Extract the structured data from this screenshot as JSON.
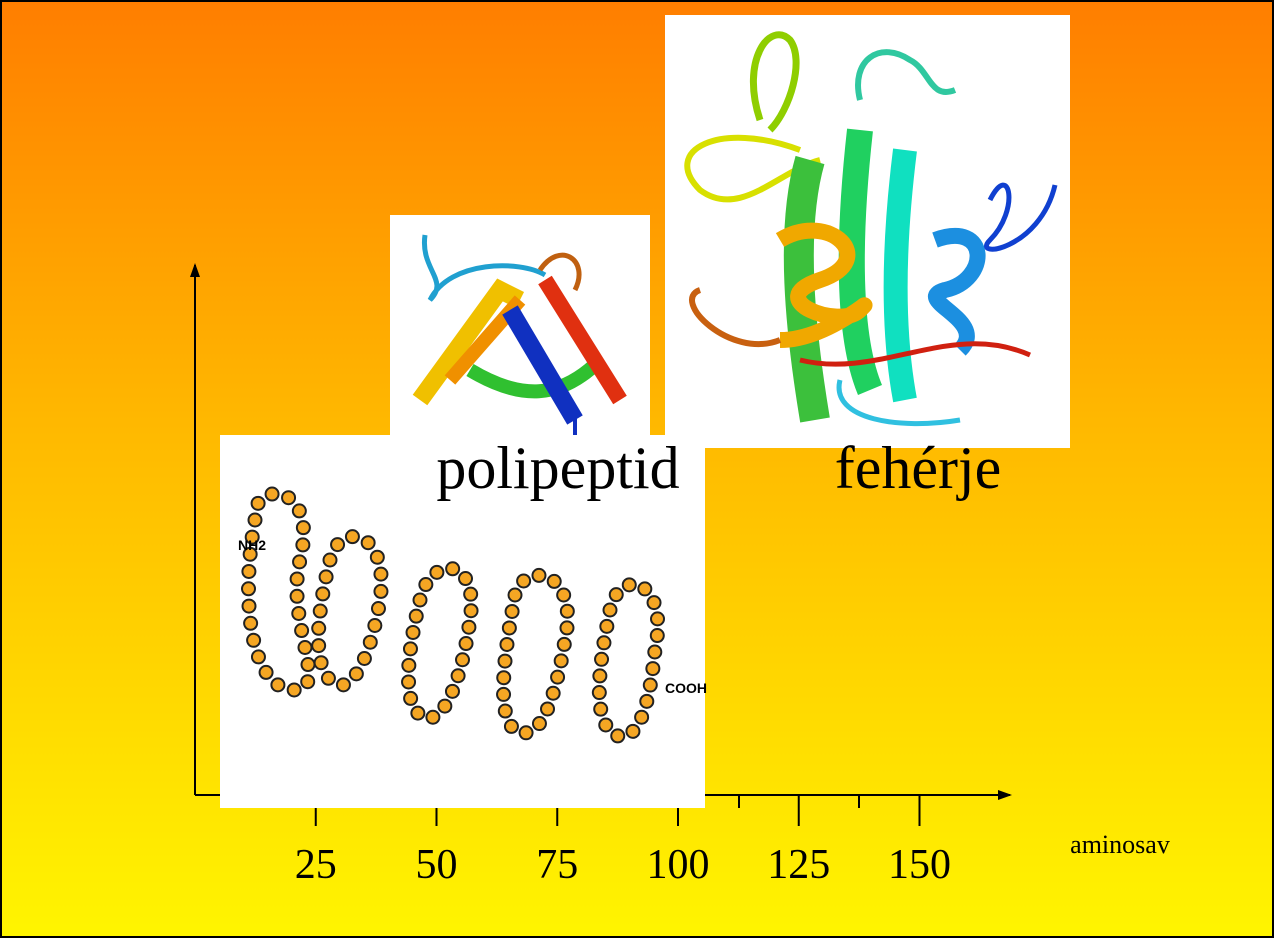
{
  "labels": {
    "polypeptide": "polipeptid",
    "protein": "fehérje"
  },
  "axis": {
    "label": "aminosav",
    "ticks": [
      25,
      50,
      75,
      100,
      125,
      150
    ]
  },
  "figure": {
    "n_terminus": "NH2",
    "c_terminus": "COOH"
  }
}
